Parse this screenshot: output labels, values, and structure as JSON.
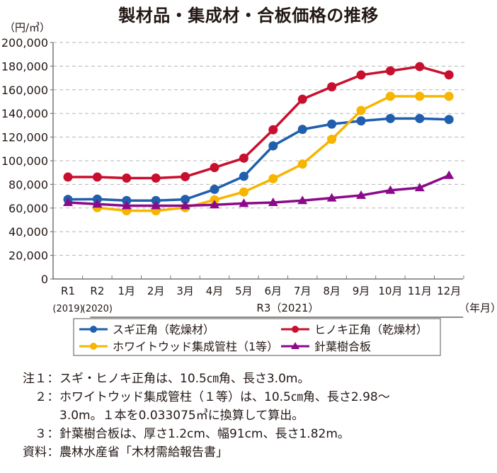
{
  "chart_data": {
    "type": "line",
    "title": "製材品・集成材・合板価格の推移",
    "ylabel": "（円/㎥）",
    "xlabel": "（年月）",
    "ylim": [
      0,
      200000
    ],
    "yticks": [
      0,
      20000,
      40000,
      60000,
      80000,
      100000,
      120000,
      140000,
      160000,
      180000,
      200000
    ],
    "ytick_labels": [
      "0",
      "20,000",
      "40,000",
      "60,000",
      "80,000",
      "100,000",
      "120,000",
      "140,000",
      "160,000",
      "180,000",
      "200,000"
    ],
    "grid": true,
    "categories": [
      "R1",
      "R2",
      "1月",
      "2月",
      "3月",
      "4月",
      "5月",
      "6月",
      "7月",
      "8月",
      "9月",
      "10月",
      "11月",
      "12月"
    ],
    "category_sublabels": [
      "(2019)",
      "(2020)",
      "",
      "",
      "",
      "",
      "",
      "",
      "",
      "",
      "",
      "",
      "",
      ""
    ],
    "group_label": "R3（2021）",
    "legend_position": "bottom",
    "series": [
      {
        "name": "スギ正角（乾燥材）",
        "color": "#1f5fad",
        "marker": "circle",
        "values": [
          67300,
          67500,
          66300,
          66300,
          67300,
          75800,
          86800,
          112600,
          126500,
          131000,
          133700,
          135700,
          135700,
          134900
        ]
      },
      {
        "name": "ヒノキ正角（乾燥材）",
        "color": "#c8102e",
        "marker": "circle",
        "values": [
          86200,
          86200,
          85300,
          85300,
          86500,
          94200,
          102200,
          126200,
          152000,
          162500,
          172500,
          176000,
          179600,
          172600
        ]
      },
      {
        "name": "ホワイトウッド集成管柱（1等）",
        "color": "#f7b500",
        "marker": "circle",
        "values": [
          null,
          60300,
          57700,
          57700,
          60300,
          66900,
          73600,
          84800,
          97200,
          118100,
          142500,
          154500,
          154500,
          154500
        ]
      },
      {
        "name": "針葉樹合板",
        "color": "#8b0a8a",
        "marker": "triangle",
        "values": [
          64700,
          63300,
          62000,
          62000,
          62000,
          62700,
          63900,
          64700,
          66300,
          68500,
          70700,
          75000,
          77200,
          87600
        ]
      }
    ]
  },
  "legend_order": [
    0,
    1,
    2,
    3
  ],
  "notes": [
    {
      "label": "注１",
      "text": "スギ・ヒノキ正角は、10.5㎝角、長さ3.0m。"
    },
    {
      "label": "２",
      "text": "ホワイトウッド集成管柱（１等）は、10.5㎝角、長さ2.98～"
    },
    {
      "label": "",
      "text": "3.0m。１本を0.033075㎥に換算して算出。"
    },
    {
      "label": "３",
      "text": "針葉樹合板は、厚さ1.2cm、幅91cm、長さ1.82m。"
    },
    {
      "label": "資料",
      "text": "農林水産省「木材需給報告書」"
    }
  ]
}
